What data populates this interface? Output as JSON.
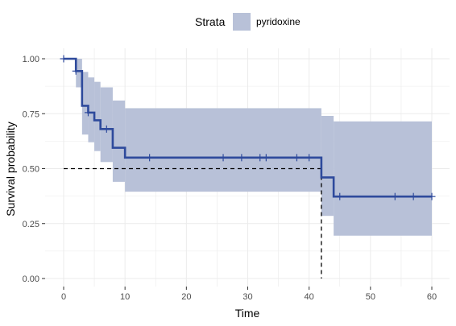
{
  "chart_data": {
    "type": "line",
    "subtype": "kaplan-meier survival curve",
    "xlabel": "Time",
    "ylabel": "Survival probability",
    "xlim": [
      0,
      60
    ],
    "ylim": [
      0,
      1
    ],
    "x_ticks": [
      0,
      10,
      20,
      30,
      40,
      50,
      60
    ],
    "y_ticks": [
      0,
      0.25,
      0.5,
      0.75,
      1.0
    ],
    "x_tick_labels": [
      "0",
      "10",
      "20",
      "30",
      "40",
      "50",
      "60"
    ],
    "y_tick_labels": [
      "0.00",
      "0.25",
      "0.50",
      "0.75",
      "1.00"
    ],
    "grid": true,
    "legend": {
      "position": "top",
      "title": "Strata",
      "entries": [
        "pyridoxine"
      ]
    },
    "colors": {
      "line": "#2e4a9c",
      "ci_band": "#b8c1d8",
      "grid": "#ebebeb",
      "median_line": "#000000"
    },
    "series": [
      {
        "name": "pyridoxine",
        "steps": [
          {
            "time": 0,
            "surv": 1.0,
            "lower": 1.0,
            "upper": 1.0
          },
          {
            "time": 2,
            "surv": 0.944,
            "lower": 0.87,
            "upper": 1.0
          },
          {
            "time": 3,
            "surv": 0.786,
            "lower": 0.655,
            "upper": 0.94
          },
          {
            "time": 4,
            "surv": 0.755,
            "lower": 0.62,
            "upper": 0.915
          },
          {
            "time": 5,
            "surv": 0.72,
            "lower": 0.58,
            "upper": 0.895
          },
          {
            "time": 6,
            "surv": 0.68,
            "lower": 0.53,
            "upper": 0.87
          },
          {
            "time": 8,
            "surv": 0.595,
            "lower": 0.44,
            "upper": 0.81
          },
          {
            "time": 10,
            "surv": 0.55,
            "lower": 0.395,
            "upper": 0.775
          },
          {
            "time": 42,
            "surv": 0.46,
            "lower": 0.285,
            "upper": 0.74
          },
          {
            "time": 44,
            "surv": 0.373,
            "lower": 0.195,
            "upper": 0.715
          },
          {
            "time": 60,
            "surv": 0.373,
            "lower": 0.195,
            "upper": 0.715
          }
        ],
        "censored": [
          {
            "time": 0,
            "surv": 1.0
          },
          {
            "time": 2,
            "surv": 0.944
          },
          {
            "time": 4,
            "surv": 0.755
          },
          {
            "time": 7,
            "surv": 0.68
          },
          {
            "time": 14,
            "surv": 0.55
          },
          {
            "time": 26,
            "surv": 0.55
          },
          {
            "time": 29,
            "surv": 0.55
          },
          {
            "time": 32,
            "surv": 0.55
          },
          {
            "time": 33,
            "surv": 0.55
          },
          {
            "time": 38,
            "surv": 0.55
          },
          {
            "time": 40,
            "surv": 0.55
          },
          {
            "time": 45,
            "surv": 0.373
          },
          {
            "time": 54,
            "surv": 0.373
          },
          {
            "time": 57,
            "surv": 0.373
          },
          {
            "time": 60,
            "surv": 0.373
          }
        ],
        "median_survival": {
          "time": 42,
          "surv": 0.5
        }
      }
    ]
  }
}
